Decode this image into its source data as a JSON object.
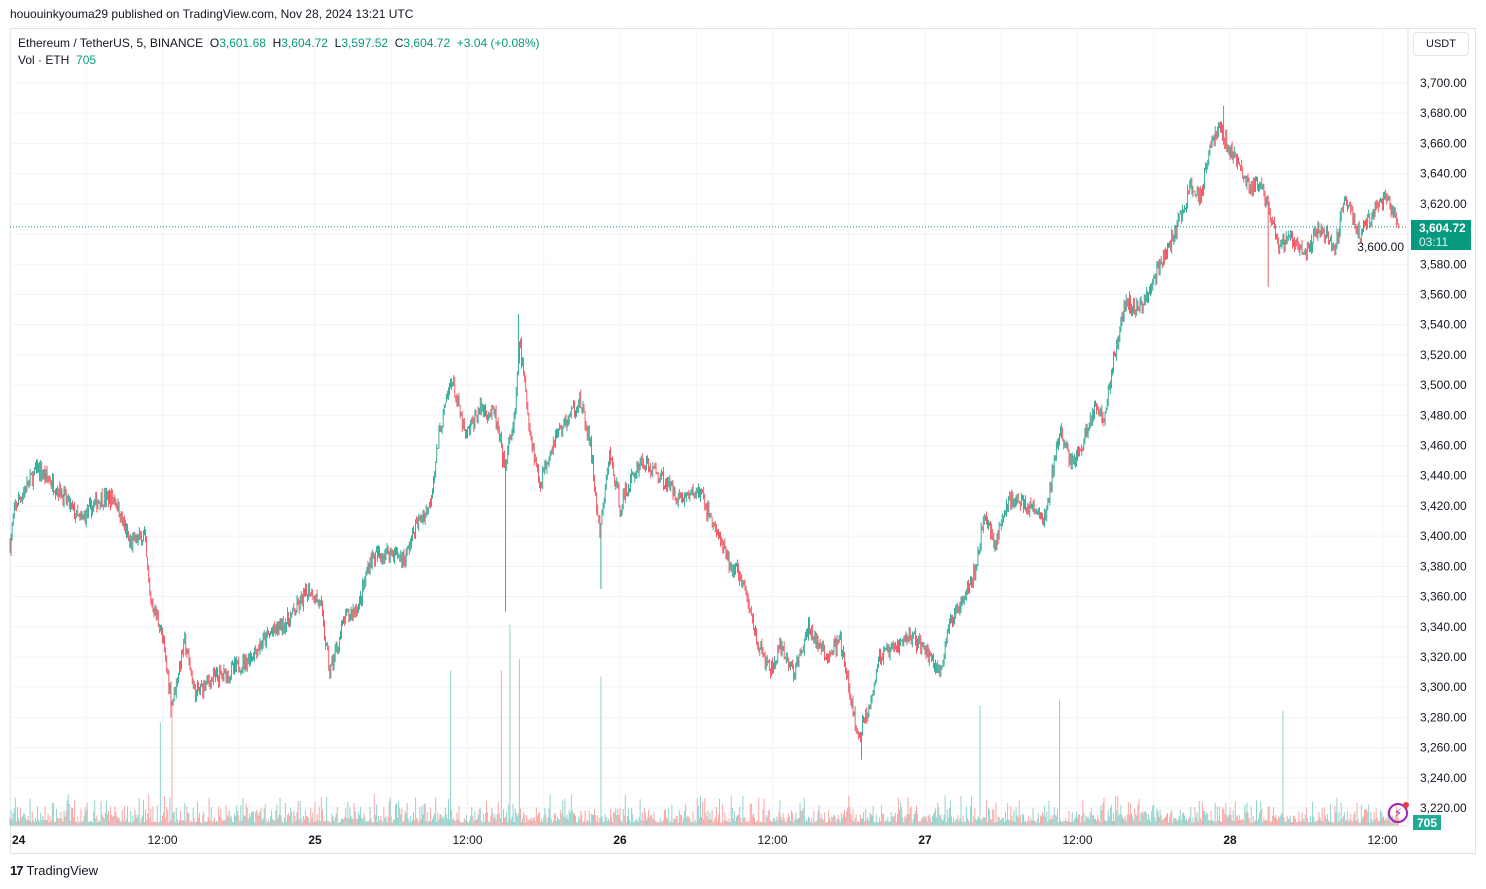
{
  "published": "hououinkyouma29 published on TradingView.com, Nov 28, 2024 13:21 UTC",
  "legend": {
    "symbol": "Ethereum / TetherUS, 5, BINANCE",
    "o_label": "O",
    "o": "3,601.68",
    "h_label": "H",
    "h": "3,604.72",
    "l_label": "L",
    "l": "3,597.52",
    "c_label": "C",
    "c": "3,604.72",
    "change": "+3.04 (+0.08%)",
    "vol_label": "Vol · ETH",
    "vol": "705"
  },
  "currency_button": "USDT",
  "last_price": "3,604.72",
  "countdown": "03:11",
  "last_volume": "705",
  "footer_brand": "TradingView",
  "colors": {
    "up": "#089981",
    "down": "#f23645",
    "vol_up": "#92d2cc",
    "vol_down": "#f7a9a7",
    "grid": "#f0f3fa"
  },
  "icons": {
    "alert": "lightning-bolt-icon",
    "brand": "tradingview-logo"
  },
  "chart_data": {
    "type": "candlestick",
    "interval": "5m",
    "yaxis": {
      "min": 3220,
      "max": 3700,
      "step": 20,
      "side": "right"
    },
    "ytick_labels": [
      "3,220.00",
      "3,240.00",
      "3,260.00",
      "3,280.00",
      "3,300.00",
      "3,320.00",
      "3,340.00",
      "3,360.00",
      "3,380.00",
      "3,400.00",
      "3,420.00",
      "3,440.00",
      "3,460.00",
      "3,480.00",
      "3,500.00",
      "3,520.00",
      "3,540.00",
      "3,560.00",
      "3,580.00",
      "3,600.00",
      "3,620.00",
      "3,640.00",
      "3,660.00",
      "3,680.00",
      "3,700.00"
    ],
    "xtick_labels": [
      {
        "t": "2024-11-24T00:00",
        "label": "24"
      },
      {
        "t": "2024-11-24T12:00",
        "label": "12:00"
      },
      {
        "t": "2024-11-25T00:00",
        "label": "25"
      },
      {
        "t": "2024-11-25T12:00",
        "label": "12:00"
      },
      {
        "t": "2024-11-26T00:00",
        "label": "26"
      },
      {
        "t": "2024-11-26T12:00",
        "label": "12:00"
      },
      {
        "t": "2024-11-27T00:00",
        "label": "27"
      },
      {
        "t": "2024-11-27T12:00",
        "label": "12:00"
      },
      {
        "t": "2024-11-28T00:00",
        "label": "28"
      },
      {
        "t": "2024-11-28T12:00",
        "label": "12:00"
      }
    ],
    "grid": true,
    "approx_close_path": [
      [
        "2024-11-24T00:00",
        3395
      ],
      [
        "2024-11-24T00:25",
        3420
      ],
      [
        "2024-11-24T02:10",
        3445
      ],
      [
        "2024-11-24T03:55",
        3430
      ],
      [
        "2024-11-24T05:30",
        3410
      ],
      [
        "2024-11-24T07:05",
        3425
      ],
      [
        "2024-11-24T08:15",
        3425
      ],
      [
        "2024-11-24T09:25",
        3395
      ],
      [
        "2024-11-24T10:35",
        3400
      ],
      [
        "2024-11-24T11:00",
        3360
      ],
      [
        "2024-11-24T11:50",
        3340
      ],
      [
        "2024-11-24T12:45",
        3290
      ],
      [
        "2024-11-24T13:45",
        3330
      ],
      [
        "2024-11-24T14:35",
        3295
      ],
      [
        "2024-11-24T15:45",
        3305
      ],
      [
        "2024-11-24T17:20",
        3310
      ],
      [
        "2024-11-24T18:55",
        3320
      ],
      [
        "2024-11-24T20:25",
        3335
      ],
      [
        "2024-11-24T22:00",
        3345
      ],
      [
        "2024-11-24T23:35",
        3365
      ],
      [
        "2024-11-25T00:25",
        3355
      ],
      [
        "2024-11-25T01:10",
        3310
      ],
      [
        "2024-11-25T02:20",
        3345
      ],
      [
        "2024-11-25T03:30",
        3355
      ],
      [
        "2024-11-25T04:20",
        3385
      ],
      [
        "2024-11-25T05:55",
        3390
      ],
      [
        "2024-11-25T07:05",
        3385
      ],
      [
        "2024-11-25T07:50",
        3405
      ],
      [
        "2024-11-25T09:00",
        3420
      ],
      [
        "2024-11-25T09:50",
        3470
      ],
      [
        "2024-11-25T10:45",
        3505
      ],
      [
        "2024-11-25T11:50",
        3465
      ],
      [
        "2024-11-25T13:00",
        3485
      ],
      [
        "2024-11-25T14:10",
        3480
      ],
      [
        "2024-11-25T14:55",
        3445
      ],
      [
        "2024-11-25T15:45",
        3480
      ],
      [
        "2024-11-25T16:05",
        3530
      ],
      [
        "2024-11-25T16:55",
        3470
      ],
      [
        "2024-11-25T17:40",
        3435
      ],
      [
        "2024-11-25T18:50",
        3465
      ],
      [
        "2024-11-25T20:05",
        3480
      ],
      [
        "2024-11-25T20:50",
        3490
      ],
      [
        "2024-11-25T21:40",
        3460
      ],
      [
        "2024-11-25T22:25",
        3400
      ],
      [
        "2024-11-25T23:10",
        3455
      ],
      [
        "2024-11-26T00:00",
        3420
      ],
      [
        "2024-11-26T01:35",
        3450
      ],
      [
        "2024-11-26T03:10",
        3440
      ],
      [
        "2024-11-26T04:45",
        3425
      ],
      [
        "2024-11-26T06:15",
        3430
      ],
      [
        "2024-11-26T07:30",
        3405
      ],
      [
        "2024-11-26T08:40",
        3380
      ],
      [
        "2024-11-26T09:25",
        3375
      ],
      [
        "2024-11-26T10:15",
        3350
      ],
      [
        "2024-11-26T11:00",
        3325
      ],
      [
        "2024-11-26T11:50",
        3310
      ],
      [
        "2024-11-26T12:35",
        3325
      ],
      [
        "2024-11-26T13:45",
        3310
      ],
      [
        "2024-11-26T14:55",
        3340
      ],
      [
        "2024-11-26T16:05",
        3320
      ],
      [
        "2024-11-26T17:20",
        3330
      ],
      [
        "2024-11-26T18:05",
        3295
      ],
      [
        "2024-11-26T18:45",
        3265
      ],
      [
        "2024-11-26T19:40",
        3290
      ],
      [
        "2024-11-26T20:25",
        3320
      ],
      [
        "2024-11-26T21:35",
        3325
      ],
      [
        "2024-11-26T22:50",
        3335
      ],
      [
        "2024-11-27T00:00",
        3325
      ],
      [
        "2024-11-27T01:10",
        3310
      ],
      [
        "2024-11-27T01:55",
        3340
      ],
      [
        "2024-11-27T03:10",
        3365
      ],
      [
        "2024-11-27T03:55",
        3375
      ],
      [
        "2024-11-27T04:40",
        3415
      ],
      [
        "2024-11-27T05:30",
        3395
      ],
      [
        "2024-11-27T06:40",
        3425
      ],
      [
        "2024-11-27T08:15",
        3420
      ],
      [
        "2024-11-27T09:25",
        3410
      ],
      [
        "2024-11-27T10:35",
        3470
      ],
      [
        "2024-11-27T11:25",
        3450
      ],
      [
        "2024-11-27T12:10",
        3455
      ],
      [
        "2024-11-27T13:20",
        3485
      ],
      [
        "2024-11-27T14:10",
        3480
      ],
      [
        "2024-11-27T14:55",
        3520
      ],
      [
        "2024-11-27T15:45",
        3555
      ],
      [
        "2024-11-27T16:55",
        3550
      ],
      [
        "2024-11-27T18:30",
        3580
      ],
      [
        "2024-11-27T19:40",
        3600
      ],
      [
        "2024-11-27T20:50",
        3630
      ],
      [
        "2024-11-27T21:40",
        3625
      ],
      [
        "2024-11-27T22:25",
        3660
      ],
      [
        "2024-11-27T23:10",
        3670
      ],
      [
        "2024-11-28T00:25",
        3650
      ],
      [
        "2024-11-28T01:35",
        3630
      ],
      [
        "2024-11-28T02:20",
        3635
      ],
      [
        "2024-11-28T03:10",
        3610
      ],
      [
        "2024-11-28T03:55",
        3590
      ],
      [
        "2024-11-28T04:40",
        3600
      ],
      [
        "2024-11-28T05:55",
        3585
      ],
      [
        "2024-11-28T07:05",
        3605
      ],
      [
        "2024-11-28T08:15",
        3590
      ],
      [
        "2024-11-28T09:00",
        3625
      ],
      [
        "2024-11-28T10:15",
        3600
      ],
      [
        "2024-11-28T11:00",
        3610
      ],
      [
        "2024-11-28T12:10",
        3625
      ],
      [
        "2024-11-28T13:15",
        3604.72
      ]
    ],
    "notable_wicks": [
      [
        "2024-11-24T12:40",
        3280
      ],
      [
        "2024-11-25T15:00",
        3350
      ],
      [
        "2024-11-25T16:00",
        3547
      ],
      [
        "2024-11-25T22:30",
        3365
      ],
      [
        "2024-11-26T19:00",
        3252
      ],
      [
        "2024-11-27T23:30",
        3685
      ],
      [
        "2024-11-28T03:00",
        3565
      ]
    ],
    "volume_spikes": [
      [
        "2024-11-24T11:50",
        9000
      ],
      [
        "2024-11-24T12:45",
        11000
      ],
      [
        "2024-11-25T10:40",
        13500
      ],
      [
        "2024-11-25T14:40",
        13500
      ],
      [
        "2024-11-25T15:20",
        17500
      ],
      [
        "2024-11-25T16:05",
        14500
      ],
      [
        "2024-11-25T22:30",
        13000
      ],
      [
        "2024-11-27T04:20",
        10500
      ],
      [
        "2024-11-27T10:35",
        11000
      ],
      [
        "2024-11-28T04:10",
        10000
      ]
    ]
  }
}
